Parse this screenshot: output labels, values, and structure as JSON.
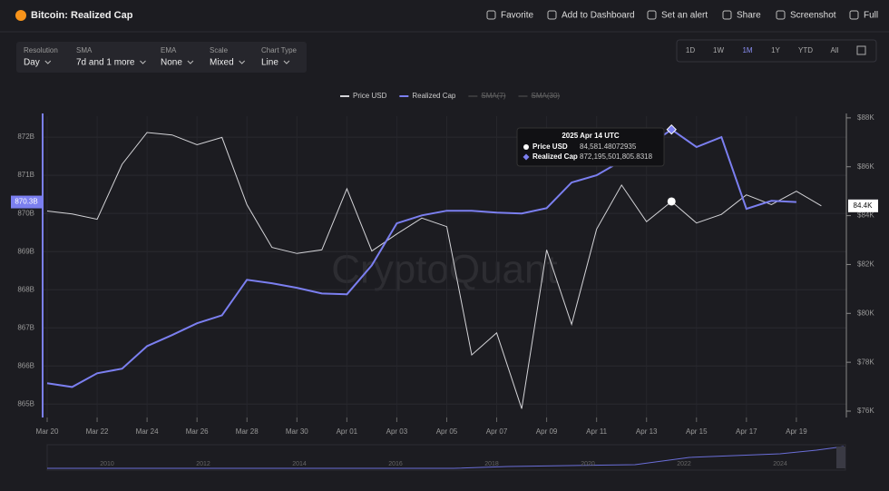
{
  "header": {
    "title": "Bitcoin: Realized Cap",
    "actions": [
      "Favorite",
      "Add to Dashboard",
      "Set an alert",
      "Share",
      "Screenshot",
      "Full"
    ]
  },
  "controls": [
    {
      "label": "Resolution",
      "value": "Day"
    },
    {
      "label": "SMA",
      "value": "7d and 1 more"
    },
    {
      "label": "EMA",
      "value": "None"
    },
    {
      "label": "Scale",
      "value": "Mixed"
    },
    {
      "label": "Chart Type",
      "value": "Line"
    }
  ],
  "ranges": {
    "options": [
      "1D",
      "1W",
      "1M",
      "1Y",
      "YTD",
      "All"
    ],
    "active": "1M"
  },
  "watermark": "CryptoQuant",
  "tooltip": {
    "date": "2025 Apr 14 UTC",
    "rows": [
      {
        "name": "Price USD",
        "value": "84,581.48072935"
      },
      {
        "name": "Realized Cap",
        "value": "872,195,501,805.8318"
      }
    ]
  },
  "chart_data": {
    "type": "line",
    "categories": [
      "Mar 20",
      null,
      "Mar 22",
      null,
      "Mar 24",
      null,
      "Mar 26",
      null,
      "Mar 28",
      null,
      "Mar 30",
      null,
      "Apr 01",
      null,
      "Apr 03",
      null,
      "Apr 05",
      null,
      "Apr 07",
      null,
      "Apr 09",
      null,
      "Apr 11",
      null,
      "Apr 13",
      null,
      "Apr 15",
      null,
      "Apr 17",
      null,
      "Apr 19",
      null
    ],
    "series": [
      {
        "name": "Price USD",
        "color": "#d4d4d8",
        "axis": "y2",
        "last_label": "84.4K",
        "values": [
          84.19,
          84.07,
          83.85,
          86.1,
          87.4,
          87.3,
          86.9,
          87.2,
          84.45,
          82.7,
          82.45,
          82.6,
          85.1,
          82.55,
          83.25,
          83.9,
          83.55,
          78.3,
          79.2,
          76.1,
          82.6,
          79.55,
          83.45,
          85.25,
          83.75,
          84.58,
          83.7,
          84.05,
          84.85,
          84.45,
          85.0,
          84.4
        ]
      },
      {
        "name": "Realized Cap",
        "color": "#7b7ff0",
        "last_label": "870.3B",
        "values": [
          865.55,
          865.45,
          865.81,
          865.93,
          866.52,
          866.81,
          867.12,
          867.33,
          868.26,
          868.17,
          868.05,
          867.9,
          867.88,
          868.64,
          869.74,
          869.95,
          870.07,
          870.07,
          870.02,
          870.0,
          870.14,
          870.81,
          871.0,
          871.38,
          871.74,
          872.2,
          871.74,
          872.0,
          870.12,
          870.33,
          870.3,
          null
        ]
      }
    ],
    "legend_disabled": [
      "SMA(7)",
      "SMA(30)"
    ],
    "highlight_index": 25,
    "ylim": [
      864.65,
      872.55
    ],
    "yticks": [
      {
        "value": 865,
        "label": "865B"
      },
      {
        "value": 866,
        "label": "866B"
      },
      {
        "value": 867,
        "label": "867B"
      },
      {
        "value": 868,
        "label": "868B"
      },
      {
        "value": 869,
        "label": "869B"
      },
      {
        "value": 870,
        "label": "870B"
      },
      {
        "value": 871,
        "label": "871B"
      },
      {
        "value": 872,
        "label": "872B"
      }
    ],
    "y2lim": [
      75.74,
      88.07
    ],
    "y2ticks": [
      {
        "value": 76,
        "label": "$76K"
      },
      {
        "value": 78,
        "label": "$78K"
      },
      {
        "value": 80,
        "label": "$80K"
      },
      {
        "value": 82,
        "label": "$82K"
      },
      {
        "value": 84,
        "label": "$84K"
      },
      {
        "value": 86,
        "label": "$86K"
      },
      {
        "value": 88,
        "label": "$88K"
      }
    ],
    "grid": true,
    "navigator": [
      "2010",
      "2012",
      "2014",
      "2016",
      "2018",
      "2020",
      "2022",
      "2024"
    ]
  }
}
